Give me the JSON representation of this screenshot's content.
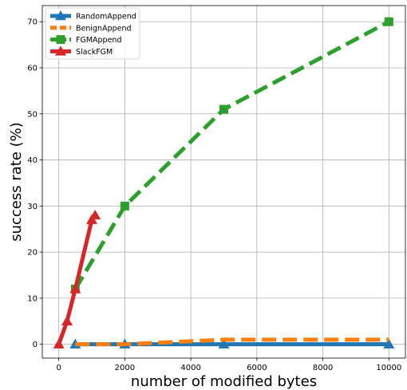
{
  "chart_data": {
    "type": "line",
    "title": "",
    "xlabel": "number of modified bytes",
    "ylabel": "success rate (%)",
    "xlim": [
      -500,
      10500
    ],
    "ylim": [
      -3,
      73.5
    ],
    "grid": true,
    "legend_position": "top-left",
    "x_ticks": [
      0,
      2000,
      4000,
      6000,
      8000,
      10000
    ],
    "y_ticks": [
      0,
      10,
      20,
      30,
      40,
      50,
      60,
      70
    ],
    "series": [
      {
        "name": "RandomAppend",
        "color": "#1f77b4",
        "style": "solid",
        "marker": "triangle",
        "x": [
          500,
          2000,
          5000,
          10000
        ],
        "y": [
          0,
          0,
          0,
          0
        ]
      },
      {
        "name": "BenignAppend",
        "color": "#ff7f0e",
        "style": "dashed",
        "marker": "none",
        "x": [
          500,
          2000,
          5000,
          10000
        ],
        "y": [
          0,
          0,
          1,
          1
        ]
      },
      {
        "name": "FGMAppend",
        "color": "#2ca02c",
        "style": "dashed",
        "marker": "square",
        "x": [
          500,
          2000,
          5000,
          10000
        ],
        "y": [
          12,
          30,
          51,
          70
        ]
      },
      {
        "name": "SlackFGM",
        "color": "#d62728",
        "style": "solid",
        "marker": "triangle",
        "x": [
          0,
          250,
          500,
          1000,
          1100
        ],
        "y": [
          0,
          5,
          12,
          27,
          28
        ]
      }
    ]
  }
}
